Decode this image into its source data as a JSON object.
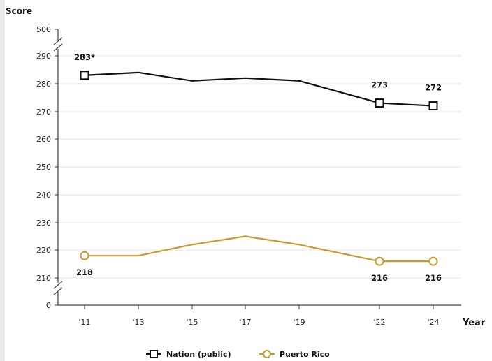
{
  "chart_data": {
    "type": "line",
    "ylabel": "Score",
    "xlabel": "Year",
    "x": [
      "'11",
      "'13",
      "'15",
      "'17",
      "'19",
      "'22",
      "'24"
    ],
    "y_ticks": [
      "500",
      "290",
      "280",
      "270",
      "260",
      "250",
      "240",
      "230",
      "220",
      "210",
      "0"
    ],
    "y_break": true,
    "ylim": [
      210,
      290
    ],
    "grid": true,
    "legend_position": "bottom-center",
    "series": [
      {
        "name": "Nation (public)",
        "marker": "square",
        "color": "#111111",
        "values": [
          283,
          284,
          281,
          282,
          281,
          273,
          272
        ],
        "labels": {
          "0": "283*",
          "5": "273",
          "6": "272"
        }
      },
      {
        "name": "Puerto Rico",
        "marker": "circle",
        "color": "#c99a2e",
        "values": [
          218,
          218,
          222,
          225,
          222,
          216,
          216
        ],
        "labels": {
          "0": "218",
          "5": "216",
          "6": "216"
        }
      }
    ]
  }
}
